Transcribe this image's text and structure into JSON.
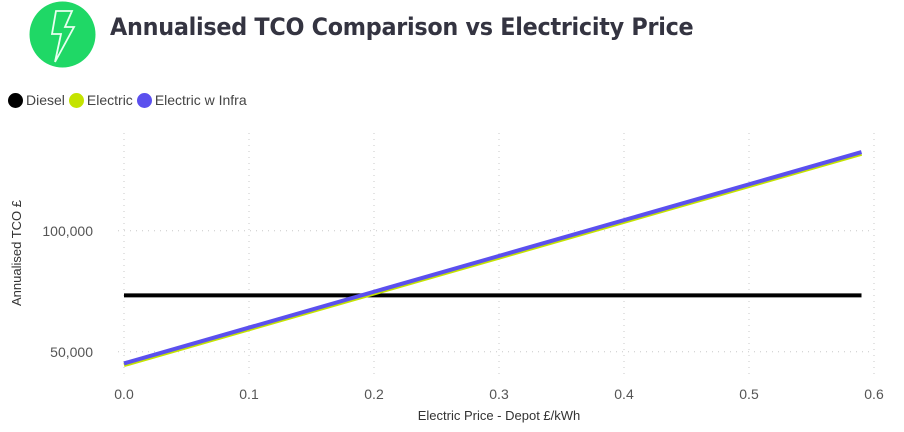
{
  "header": {
    "icon": "lightning-bolt-icon",
    "icon_bg_color": "#1fd866",
    "title": "Annualised TCO Comparison vs Electricity Price"
  },
  "chart_data": {
    "type": "line",
    "title": "Annualised TCO Comparison vs Electricity Price",
    "xlabel": "Electric Price - Depot £/kWh",
    "ylabel": "Annualised TCO £",
    "xlim": [
      0.0,
      0.6
    ],
    "ylim": [
      43300,
      140400
    ],
    "xticks": [
      0.0,
      0.1,
      0.2,
      0.3,
      0.4,
      0.5,
      0.6
    ],
    "xtick_labels": [
      "0.0",
      "0.1",
      "0.2",
      "0.3",
      "0.4",
      "0.5",
      "0.6"
    ],
    "yticks": [
      50000,
      100000
    ],
    "ytick_labels": [
      "50,000",
      "100,000"
    ],
    "grid": true,
    "legend_position": "top-left",
    "x": [
      0.0,
      0.59
    ],
    "series": [
      {
        "name": "Diesel",
        "color": "#000000",
        "values": [
          73300,
          73300
        ]
      },
      {
        "name": "Electric",
        "color": "#c4e300",
        "values": [
          44500,
          131800
        ]
      },
      {
        "name": "Electric w Infra",
        "color": "#5b50ee",
        "values": [
          45200,
          132500
        ]
      }
    ]
  }
}
